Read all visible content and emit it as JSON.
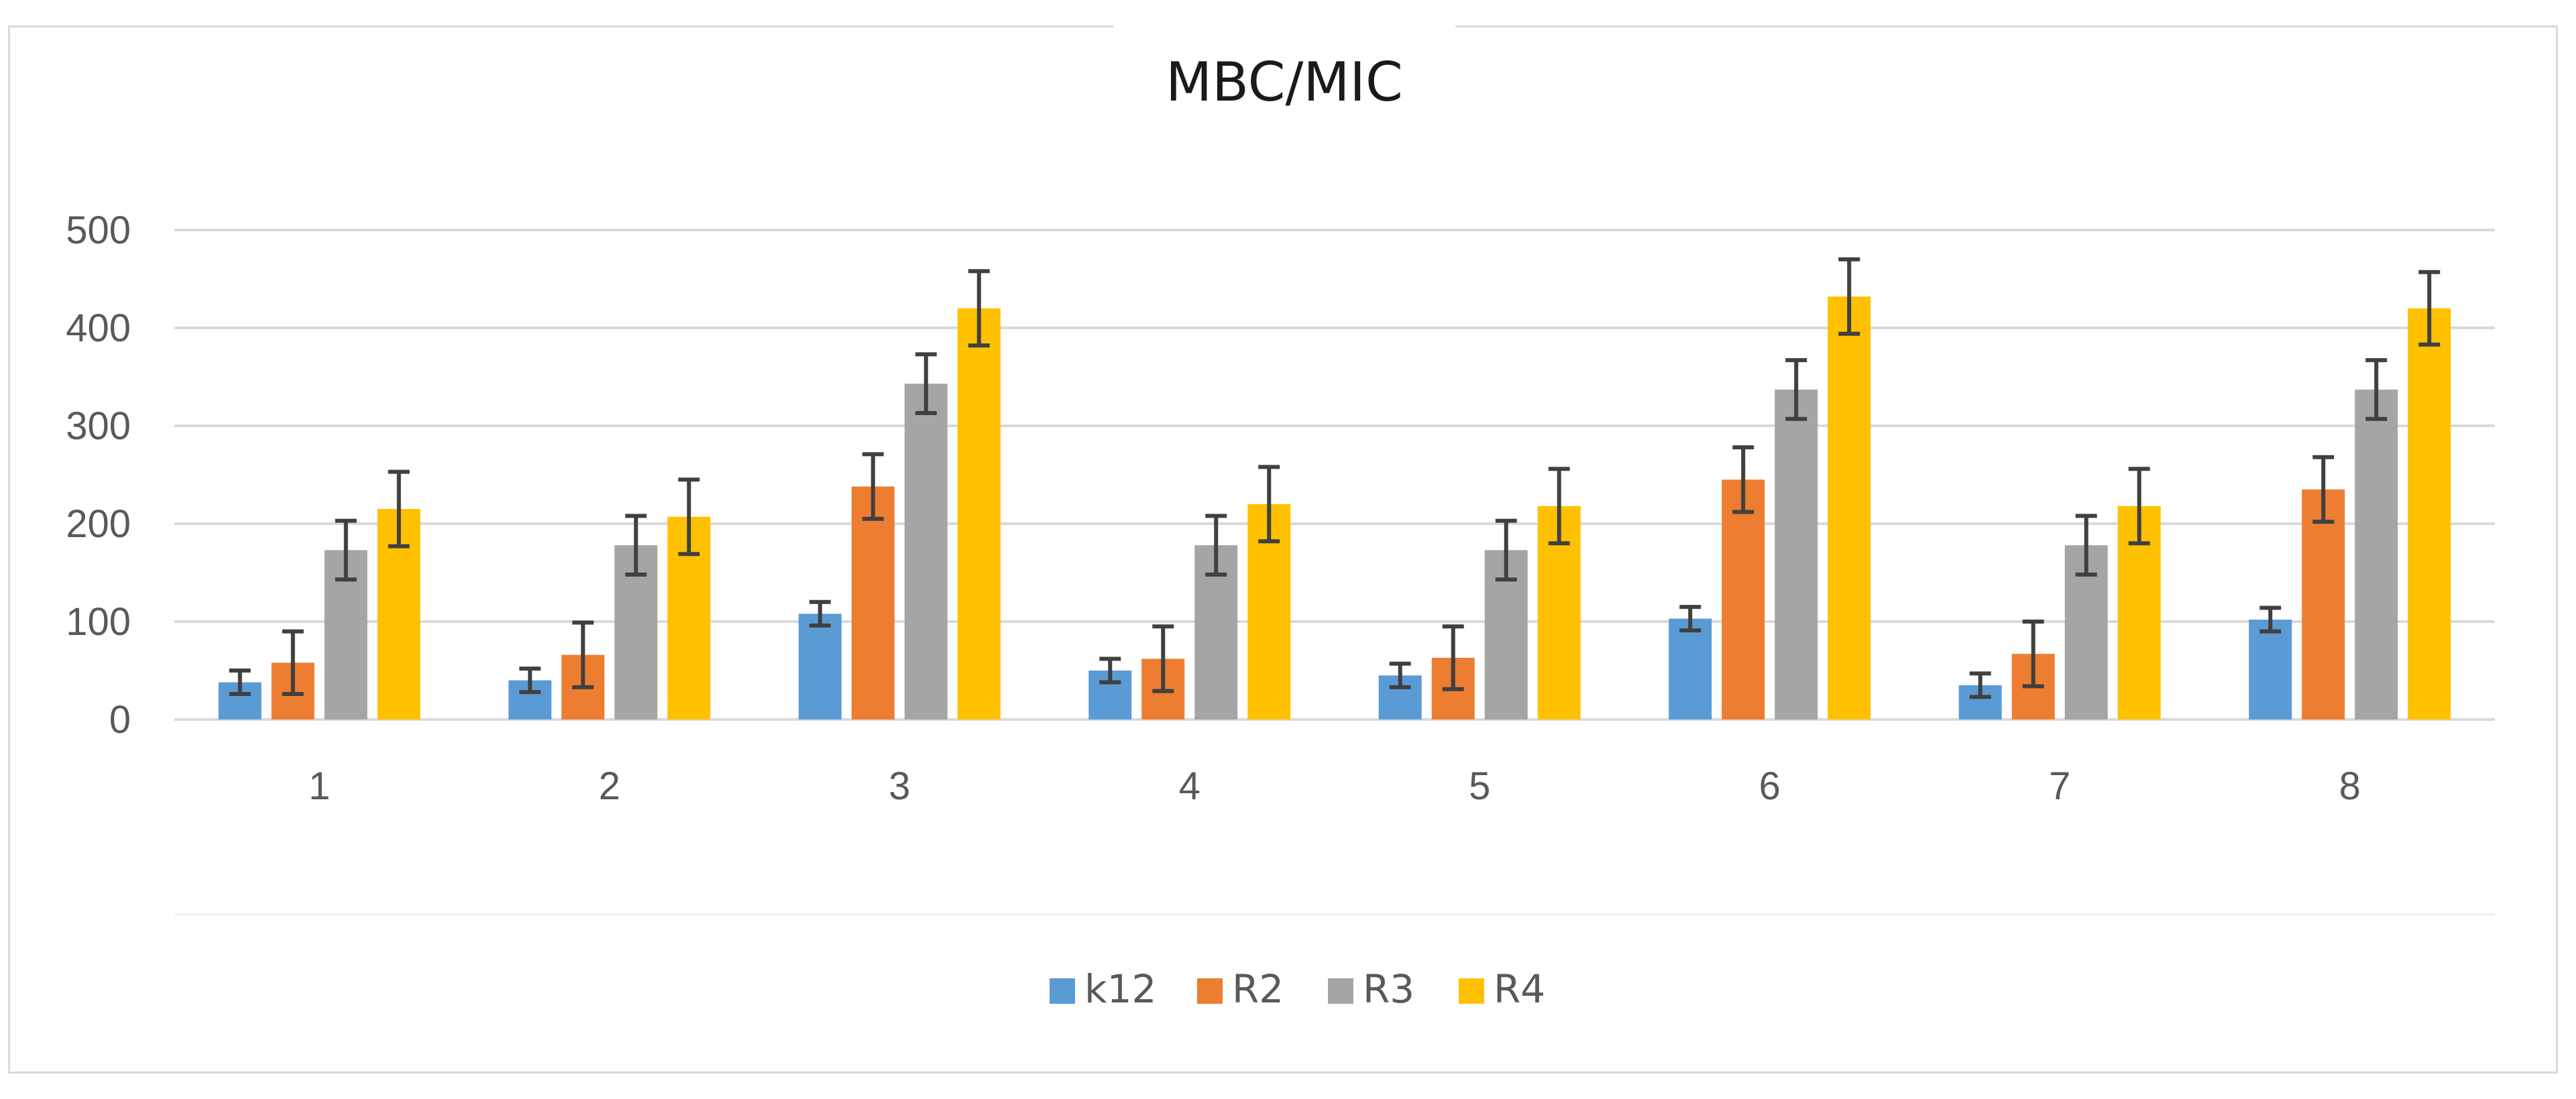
{
  "chart_data": {
    "type": "bar",
    "title": "MBC/MIC",
    "xlabel": "",
    "ylabel": "",
    "categories": [
      "1",
      "2",
      "3",
      "4",
      "5",
      "6",
      "7",
      "8"
    ],
    "ylim": [
      0,
      500
    ],
    "yticks": [
      0,
      100,
      200,
      300,
      400,
      500
    ],
    "ytick_labels": [
      "0",
      "100",
      "200",
      "300",
      "400",
      "500"
    ],
    "grid": true,
    "legend_position": "bottom",
    "series": [
      {
        "name": "k12",
        "color": "#5b9bd5",
        "values": [
          38,
          40,
          108,
          50,
          45,
          103,
          35,
          102
        ],
        "errors": [
          12,
          12,
          12,
          12,
          12,
          12,
          12,
          12
        ]
      },
      {
        "name": "R2",
        "color": "#ed7d31",
        "values": [
          58,
          66,
          238,
          62,
          63,
          245,
          67,
          235
        ],
        "errors": [
          32,
          33,
          33,
          33,
          32,
          33,
          33,
          33
        ]
      },
      {
        "name": "R3",
        "color": "#a5a5a5",
        "values": [
          173,
          178,
          343,
          178,
          173,
          337,
          178,
          337
        ],
        "errors": [
          30,
          30,
          30,
          30,
          30,
          30,
          30,
          30
        ]
      },
      {
        "name": "R4",
        "color": "#ffc000",
        "values": [
          215,
          207,
          420,
          220,
          218,
          432,
          218,
          420
        ],
        "errors": [
          38,
          38,
          38,
          38,
          38,
          38,
          38,
          37
        ]
      }
    ]
  }
}
